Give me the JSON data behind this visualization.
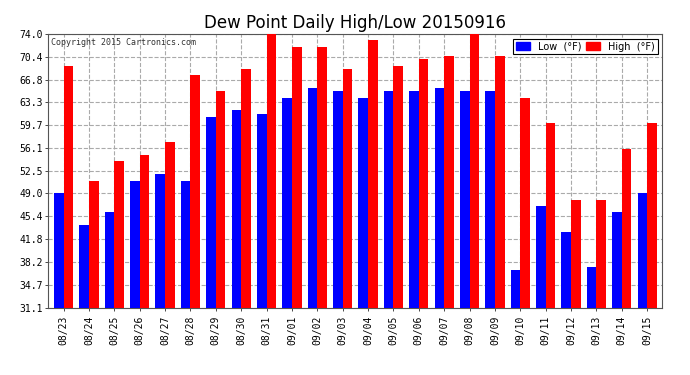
{
  "title": "Dew Point Daily High/Low 20150916",
  "copyright": "Copyright 2015 Cartronics.com",
  "dates": [
    "08/23",
    "08/24",
    "08/25",
    "08/26",
    "08/27",
    "08/28",
    "08/29",
    "08/30",
    "08/31",
    "09/01",
    "09/02",
    "09/03",
    "09/04",
    "09/05",
    "09/06",
    "09/07",
    "09/08",
    "09/09",
    "09/10",
    "09/11",
    "09/12",
    "09/13",
    "09/14",
    "09/15"
  ],
  "high_values": [
    69.0,
    51.0,
    54.0,
    55.0,
    57.0,
    67.5,
    65.0,
    68.5,
    74.0,
    72.0,
    72.0,
    68.5,
    73.0,
    69.0,
    70.0,
    70.5,
    74.0,
    70.5,
    64.0,
    60.0,
    48.0,
    48.0,
    56.0,
    60.0
  ],
  "low_values": [
    49.0,
    44.0,
    46.0,
    51.0,
    52.0,
    51.0,
    61.0,
    62.0,
    61.5,
    64.0,
    65.5,
    65.0,
    64.0,
    65.0,
    65.0,
    65.5,
    65.0,
    65.0,
    37.0,
    47.0,
    43.0,
    37.5,
    46.0,
    49.0
  ],
  "high_color": "#ff0000",
  "low_color": "#0000ff",
  "bg_color": "#ffffff",
  "plot_bg_color": "#ffffff",
  "grid_color": "#aaaaaa",
  "yticks": [
    31.1,
    34.7,
    38.2,
    41.8,
    45.4,
    49.0,
    52.5,
    56.1,
    59.7,
    63.3,
    66.8,
    70.4,
    74.0
  ],
  "ymin": 31.1,
  "ymax": 74.0,
  "bar_width": 0.38,
  "title_fontsize": 12,
  "tick_fontsize": 7,
  "legend_low_label": "Low  (°F)",
  "legend_high_label": "High  (°F)"
}
